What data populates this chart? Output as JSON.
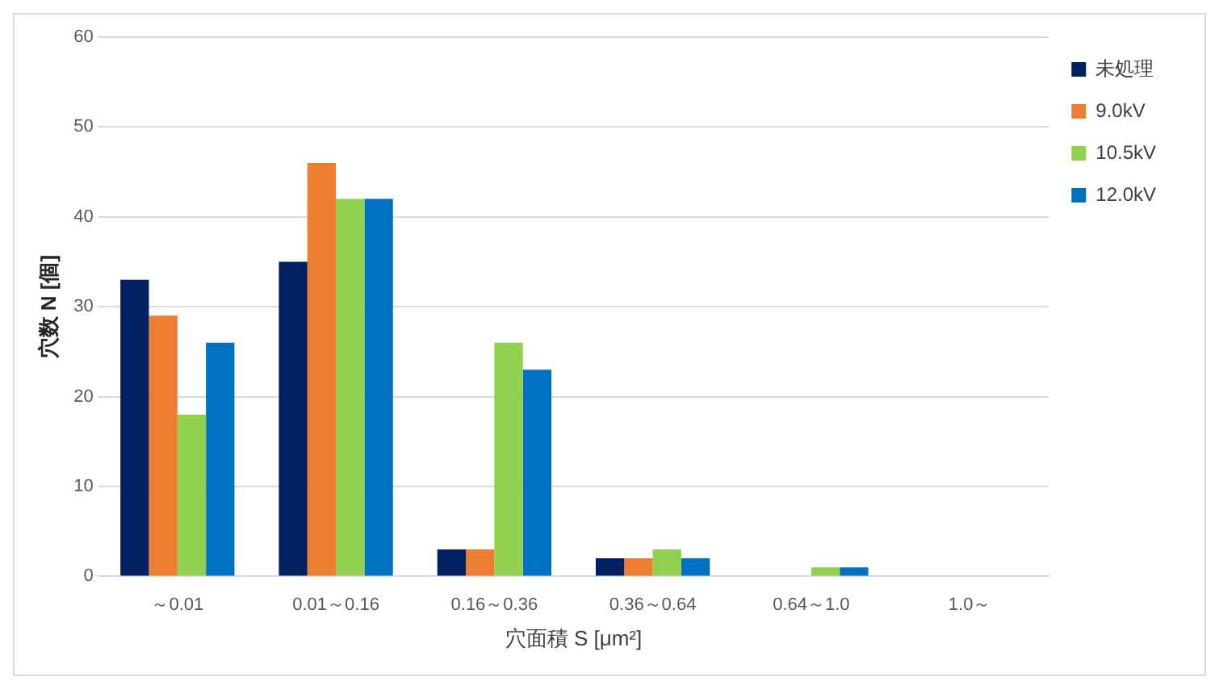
{
  "chart_data": {
    "type": "bar",
    "xlabel": "穴面積 S [μm²]",
    "ylabel": "穴数 N [個]",
    "categories": [
      "～0.01",
      "0.01～0.16",
      "0.16～0.36",
      "0.36～0.64",
      "0.64～1.0",
      "1.0～"
    ],
    "series": [
      {
        "name": "未処理",
        "color": "#002060",
        "values": [
          33,
          35,
          3,
          2,
          0,
          0
        ]
      },
      {
        "name": "9.0kV",
        "color": "#ed7d31",
        "values": [
          29,
          46,
          3,
          2,
          0,
          0
        ]
      },
      {
        "name": "10.5kV",
        "color": "#92d050",
        "values": [
          18,
          42,
          26,
          3,
          1,
          0
        ]
      },
      {
        "name": "12.0kV",
        "color": "#0070c0",
        "values": [
          26,
          42,
          23,
          2,
          1,
          0
        ]
      }
    ],
    "ylim": [
      0,
      60
    ],
    "yticks": [
      0,
      10,
      20,
      30,
      40,
      50,
      60
    ],
    "grid": "y",
    "legend": "right"
  }
}
